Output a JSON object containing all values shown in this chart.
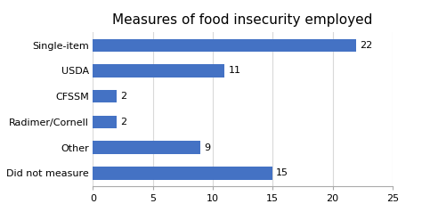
{
  "title": "Measures of food insecurity employed",
  "categories": [
    "Did not measure",
    "Other",
    "Radimer/Cornell",
    "CFSSM",
    "USDA",
    "Single-item"
  ],
  "values": [
    15,
    9,
    2,
    2,
    11,
    22
  ],
  "bar_color": "#4472C4",
  "xlim": [
    0,
    25
  ],
  "xticks": [
    0,
    5,
    10,
    15,
    20,
    25
  ],
  "background_color": "#ffffff",
  "plot_bg_color": "#ffffff",
  "title_fontsize": 11,
  "label_fontsize": 8,
  "tick_fontsize": 8,
  "value_fontsize": 8,
  "bar_height": 0.5,
  "grid_color": "#d9d9d9",
  "spine_color": "#aaaaaa"
}
